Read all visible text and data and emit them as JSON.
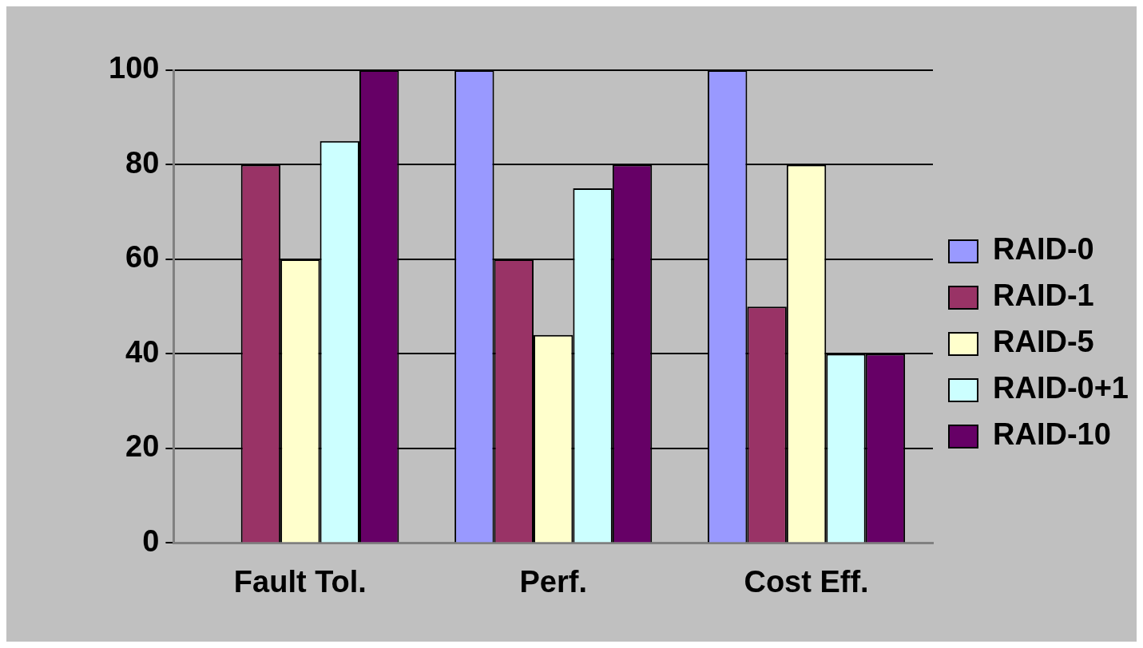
{
  "chart_data": {
    "type": "bar",
    "categories": [
      "Fault Tol.",
      "Perf.",
      "Cost Eff."
    ],
    "series": [
      {
        "name": "RAID-0",
        "color": "#9999ff",
        "values": [
          0,
          100,
          100
        ]
      },
      {
        "name": "RAID-1",
        "color": "#993366",
        "values": [
          80,
          60,
          50
        ]
      },
      {
        "name": "RAID-5",
        "color": "#ffffcc",
        "values": [
          60,
          44,
          80
        ]
      },
      {
        "name": "RAID-0+1",
        "color": "#ccffff",
        "values": [
          85,
          75,
          40
        ]
      },
      {
        "name": "RAID-10",
        "color": "#660066",
        "values": [
          100,
          80,
          40
        ]
      }
    ],
    "ylim": [
      0,
      100
    ],
    "yticks": [
      0,
      20,
      40,
      60,
      80,
      100
    ],
    "grid": "y",
    "legend": "right"
  }
}
